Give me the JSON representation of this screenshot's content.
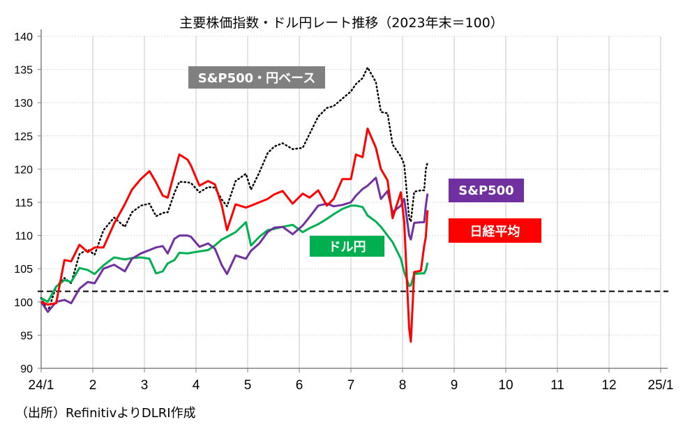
{
  "chart_data": {
    "type": "line",
    "title": "主要株価指数・ドル円レート推移（2023年末＝100）",
    "source": "（出所）RefinitivよりDLRI作成",
    "ylim": [
      90,
      140
    ],
    "yticks": [
      "90",
      "95",
      "100",
      "105",
      "110",
      "115",
      "120",
      "125",
      "130",
      "135",
      "140"
    ],
    "xlim": [
      "2024-01-01",
      "2025-01-01"
    ],
    "xticks": [
      "24/1",
      "2",
      "3",
      "4",
      "5",
      "6",
      "7",
      "8",
      "9",
      "10",
      "11",
      "12",
      "25/1"
    ],
    "grid": true,
    "reference_line": {
      "value": 101.6,
      "style": "dashed",
      "color": "#000000"
    },
    "x": [
      "2024-01-01",
      "2024-01-05",
      "2024-01-10",
      "2024-01-15",
      "2024-01-19",
      "2024-01-24",
      "2024-01-29",
      "2024-02-02",
      "2024-02-07",
      "2024-02-13",
      "2024-02-19",
      "2024-02-23",
      "2024-02-28",
      "2024-03-04",
      "2024-03-08",
      "2024-03-12",
      "2024-03-15",
      "2024-03-19",
      "2024-03-22",
      "2024-03-27",
      "2024-03-29",
      "2024-04-03",
      "2024-04-08",
      "2024-04-12",
      "2024-04-16",
      "2024-04-19",
      "2024-04-24",
      "2024-04-30",
      "2024-05-03",
      "2024-05-08",
      "2024-05-13",
      "2024-05-17",
      "2024-05-22",
      "2024-05-28",
      "2024-06-03",
      "2024-06-07",
      "2024-06-12",
      "2024-06-17",
      "2024-06-21",
      "2024-06-26",
      "2024-07-01",
      "2024-07-04",
      "2024-07-08",
      "2024-07-11",
      "2024-07-16",
      "2024-07-19",
      "2024-07-23",
      "2024-07-26",
      "2024-07-31",
      "2024-08-02",
      "2024-08-05",
      "2024-08-06",
      "2024-08-08",
      "2024-08-12",
      "2024-08-14",
      "2024-08-15",
      "2024-08-16"
    ],
    "series": [
      {
        "name": "S&P500・円ベース",
        "color": "#000000",
        "label_bg": "#808080",
        "style": "dotted",
        "values": [
          100.6,
          98.5,
          102.3,
          103.6,
          102.8,
          107.2,
          107.9,
          107.1,
          110.8,
          112.7,
          111.3,
          113.5,
          114.5,
          114.8,
          112.9,
          113.4,
          113.5,
          116.4,
          118.1,
          118,
          117.9,
          116.5,
          117.3,
          117.2,
          115.4,
          114.4,
          118.2,
          119.3,
          116.9,
          119.5,
          122.4,
          123.4,
          123.9,
          123,
          123.2,
          125.3,
          127.9,
          129.2,
          129.5,
          130.6,
          131.7,
          132.8,
          133.7,
          135.3,
          133.1,
          128.6,
          128.4,
          123.7,
          121.9,
          120.7,
          112.6,
          112.1,
          116.6,
          116.8,
          116.8,
          120,
          121
        ]
      },
      {
        "name": "S&P500",
        "color": "#7030A0",
        "label_bg": "#7030A0",
        "style": "solid",
        "values": [
          100,
          98.5,
          100,
          100.3,
          99.8,
          102,
          103,
          102.8,
          105,
          105.6,
          104.6,
          106.5,
          107.3,
          107.8,
          108.2,
          108.4,
          107.3,
          109.5,
          110,
          110,
          109.8,
          108.3,
          108.8,
          108,
          105.5,
          104.2,
          107,
          106.5,
          107.7,
          108.8,
          110.5,
          111.2,
          111.3,
          110.2,
          111.5,
          112.8,
          114.5,
          114.8,
          114.4,
          114.6,
          115,
          116,
          117,
          117.5,
          118.7,
          115.5,
          116.7,
          113.5,
          114.5,
          115.5,
          110,
          109.4,
          111.9,
          112,
          112,
          114.5,
          116.3
        ]
      },
      {
        "name": "日経平均",
        "color": "#FF0000",
        "label_bg": "#FF0000",
        "style": "solid",
        "values": [
          100,
          99.6,
          99.8,
          106.3,
          106.1,
          108.6,
          107.5,
          108.2,
          108.2,
          111.8,
          114.7,
          116.9,
          118.5,
          119.7,
          118,
          116,
          115.7,
          119.5,
          122.2,
          121.4,
          120.5,
          117.5,
          118.2,
          117.7,
          114.5,
          110.8,
          114.7,
          114.2,
          114.5,
          115,
          115.5,
          116.2,
          116.7,
          114.8,
          116.3,
          115.7,
          116.8,
          114.5,
          115.5,
          118.5,
          118.5,
          122.2,
          121.8,
          126.1,
          123.2,
          120,
          118.3,
          112.6,
          116.5,
          112,
          96,
          94,
          104.5,
          104.7,
          108.4,
          109.8,
          113.8
        ]
      },
      {
        "name": "ドル円",
        "color": "#00B050",
        "label_bg": "#00B050",
        "style": "solid",
        "values": [
          100.6,
          100,
          102.3,
          103.3,
          103,
          105.1,
          104.8,
          104.2,
          105.5,
          106.7,
          106.4,
          106.6,
          106.7,
          106.5,
          104.3,
          104.6,
          105.8,
          106.3,
          107.4,
          107.3,
          107.4,
          107.6,
          107.8,
          108.5,
          109.4,
          109.8,
          110.5,
          112,
          108.5,
          109.8,
          110.8,
          111,
          111.3,
          111.6,
          110.5,
          111.1,
          111.7,
          112.5,
          113.2,
          114,
          114.5,
          114.5,
          114.3,
          113,
          112.1,
          111.3,
          110,
          109,
          106.5,
          104.5,
          102.4,
          102.5,
          104.2,
          104.3,
          104.3,
          104.8,
          105.9
        ]
      }
    ]
  }
}
